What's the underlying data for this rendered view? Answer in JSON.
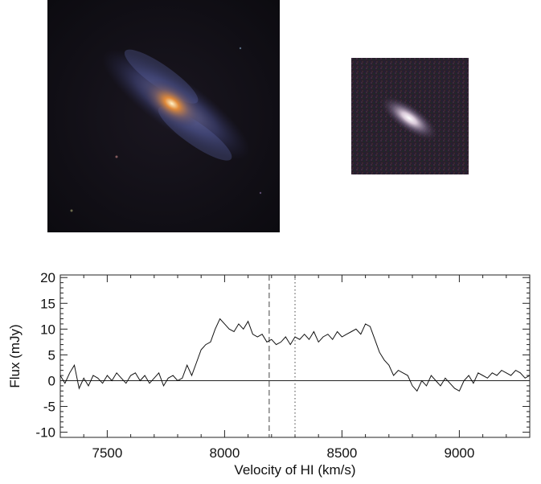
{
  "images": [
    {
      "name": "galaxy-optical-large",
      "description_icon": "spiral-galaxy-image"
    },
    {
      "name": "galaxy-optical-small",
      "description_icon": "noisy-galaxy-image"
    }
  ],
  "chart_data": {
    "type": "line",
    "title": "",
    "xlabel": "Velocity of HI (km/s)",
    "ylabel": "Flux (mJy)",
    "xlim": [
      7300,
      9300
    ],
    "ylim": [
      -11,
      20.5
    ],
    "xticks": [
      7500,
      8000,
      8500,
      9000
    ],
    "xtick_labels": [
      "7500",
      "8000",
      "8500",
      "9000"
    ],
    "yticks": [
      20,
      15,
      10,
      5,
      0,
      -5,
      -10
    ],
    "ytick_labels": [
      "20",
      "15",
      "10",
      "5",
      "0",
      "-5",
      "-10"
    ],
    "grid": false,
    "reference_lines": [
      {
        "style": "dashed",
        "x": 8190
      },
      {
        "style": "dotted",
        "x": 8300
      }
    ],
    "zero_line": 0,
    "series": [
      {
        "color": "#000000",
        "x": [
          7300,
          7320,
          7340,
          7360,
          7380,
          7400,
          7420,
          7440,
          7460,
          7480,
          7500,
          7520,
          7540,
          7560,
          7580,
          7600,
          7620,
          7640,
          7660,
          7680,
          7700,
          7720,
          7740,
          7760,
          7780,
          7800,
          7820,
          7840,
          7860,
          7880,
          7900,
          7920,
          7940,
          7960,
          7980,
          8000,
          8020,
          8040,
          8060,
          8080,
          8100,
          8120,
          8140,
          8160,
          8180,
          8200,
          8220,
          8240,
          8260,
          8280,
          8300,
          8320,
          8340,
          8360,
          8380,
          8400,
          8420,
          8440,
          8460,
          8480,
          8500,
          8520,
          8540,
          8560,
          8580,
          8600,
          8620,
          8640,
          8660,
          8680,
          8700,
          8720,
          8740,
          8760,
          8780,
          8800,
          8820,
          8840,
          8860,
          8880,
          8900,
          8920,
          8940,
          8960,
          8980,
          9000,
          9020,
          9040,
          9060,
          9080,
          9100,
          9120,
          9140,
          9160,
          9180,
          9200,
          9220,
          9240,
          9260,
          9280,
          9300
        ],
        "y": [
          1.0,
          -0.5,
          1.5,
          3.0,
          -1.5,
          0.5,
          -1.0,
          1.0,
          0.5,
          -0.5,
          1.0,
          0.0,
          1.5,
          0.5,
          -0.5,
          1.0,
          1.5,
          0.0,
          1.0,
          -0.5,
          0.5,
          1.5,
          -1.0,
          0.5,
          1.0,
          0.0,
          0.5,
          3.0,
          1.0,
          3.5,
          6.0,
          7.0,
          7.5,
          10.0,
          12.0,
          11.0,
          10.0,
          9.5,
          11.0,
          10.0,
          11.5,
          9.0,
          8.5,
          9.0,
          7.5,
          8.0,
          7.0,
          7.5,
          8.5,
          7.0,
          8.5,
          8.0,
          9.0,
          8.0,
          9.5,
          7.5,
          8.5,
          9.0,
          8.0,
          9.5,
          8.5,
          9.0,
          9.5,
          10.0,
          9.0,
          11.0,
          10.5,
          8.0,
          5.5,
          4.0,
          3.0,
          1.0,
          2.0,
          1.5,
          1.0,
          -1.0,
          -2.0,
          0.0,
          -1.0,
          1.0,
          0.0,
          -1.0,
          0.5,
          -0.5,
          -1.5,
          -2.0,
          0.0,
          1.0,
          -0.5,
          1.5,
          1.0,
          0.5,
          1.5,
          1.0,
          2.0,
          1.5,
          1.0,
          2.0,
          1.5,
          0.5,
          1.0
        ]
      }
    ]
  }
}
